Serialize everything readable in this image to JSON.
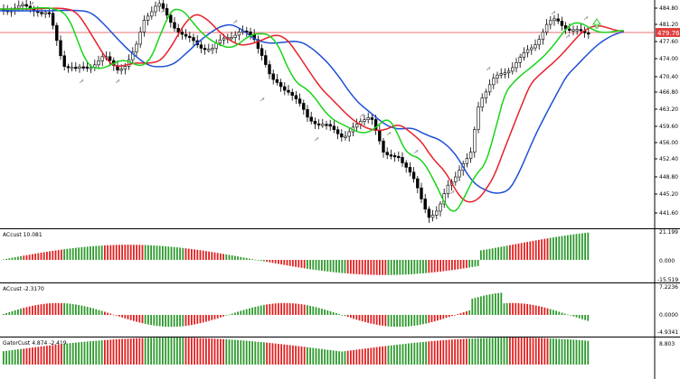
{
  "main_chart": {
    "price_axis_labels": [
      "484.80",
      "481.20",
      "477.60",
      "474.00",
      "470.40",
      "466.80",
      "463.20",
      "459.60",
      "456.00",
      "452.40",
      "448.80",
      "445.20",
      "441.60"
    ],
    "current_price_label": "479.76",
    "colors": {
      "bull_candle": "#ffffff",
      "bear_candle": "#000000",
      "jaw": "#1f4fd6",
      "teeth": "#e8202a",
      "lips": "#19d419",
      "price_line": "#e04040",
      "fractal_arrow": "#a8a8a8",
      "signal_arrow": "#22cc22"
    }
  },
  "panels": [
    {
      "name": "ac-osc-1",
      "label": "ACcust 10.081",
      "axis_labels": [
        "21.199",
        "0.000",
        "-15.519"
      ]
    },
    {
      "name": "ac-osc-2",
      "label": "ACcust -2.3170",
      "axis_labels": [
        "7.2236",
        "0.0000",
        "-4.9341"
      ]
    },
    {
      "name": "gator-osc",
      "label": "GatorCust 4.874 -2.419",
      "axis_labels": [
        "8.803"
      ]
    }
  ],
  "histogram_colors": {
    "up": "#2e9a2e",
    "down": "#e02020"
  }
}
